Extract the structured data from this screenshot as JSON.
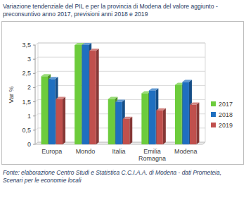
{
  "chart_data": {
    "type": "bar",
    "title": "Variazione tendenziale del PIL e per la provincia di Modena del valore aggiunto - preconsuntivo anno 2017, previsioni anni 2018 e 2019",
    "y_label": "Var %",
    "source": "Fonte: elaborazione Centro Studi e Statistica C.C.I.A.A. di Modena - dati Prometeia, Scenari per le economie locali",
    "categories": [
      "Europa",
      "Mondo",
      "Italia",
      "Emilia Romagna",
      "Modena"
    ],
    "series": [
      {
        "name": "2017",
        "color": "#6dcc3c",
        "values": [
          2.4,
          3.5,
          1.6,
          1.8,
          2.1
        ]
      },
      {
        "name": "2018",
        "color": "#1f6fc0",
        "values": [
          2.3,
          3.5,
          1.5,
          1.9,
          2.2
        ]
      },
      {
        "name": "2019",
        "color": "#c0504d",
        "values": [
          1.6,
          3.3,
          0.9,
          1.2,
          1.4
        ]
      }
    ],
    "ylim": [
      0,
      3.5
    ],
    "yticks": [
      0,
      {
        "value": 0.5,
        "label": "0,5"
      },
      1,
      {
        "value": 1.5,
        "label": "1,5"
      },
      2,
      {
        "value": 2.5,
        "label": "2,5"
      },
      3,
      {
        "value": 3.5,
        "label": "3,5"
      }
    ],
    "grid": true,
    "legend": "right"
  }
}
